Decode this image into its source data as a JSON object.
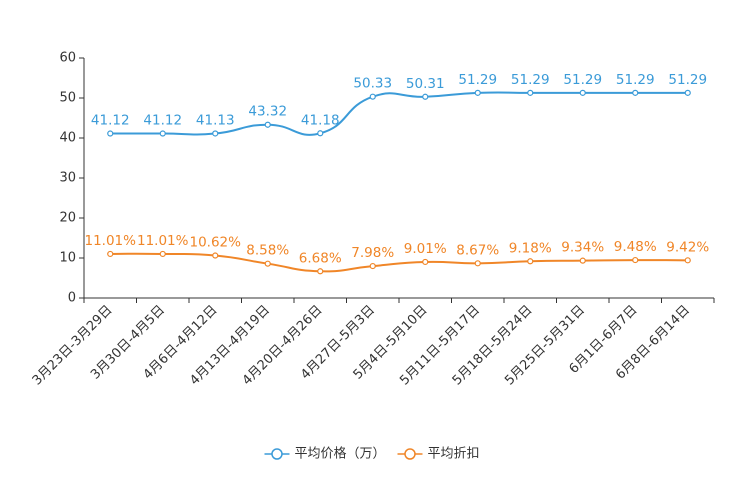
{
  "chart_data": {
    "type": "line",
    "ylim": [
      0,
      60
    ],
    "yticks": [
      0,
      10,
      20,
      30,
      40,
      50,
      60
    ],
    "categories": [
      "3月23日-3月29日",
      "3月30日-4月5日",
      "4月6日-4月12日",
      "4月13日-4月19日",
      "4月20日-4月26日",
      "4月27日-5月3日",
      "5月4日-5月10日",
      "5月11日-5月17日",
      "5月18日-5月24日",
      "5月25日-5月31日",
      "6月1日-6月7日",
      "6月8日-6月14日"
    ],
    "series": [
      {
        "name": "平均价格（万）",
        "color": "#3b9bd8",
        "values": [
          41.12,
          41.12,
          41.13,
          43.32,
          41.18,
          50.33,
          50.31,
          51.29,
          51.29,
          51.29,
          51.29,
          51.29
        ],
        "labels": [
          "41.12",
          "41.12",
          "41.13",
          "43.32",
          "41.18",
          "50.33",
          "50.31",
          "51.29",
          "51.29",
          "51.29",
          "51.29",
          "51.29"
        ]
      },
      {
        "name": "平均折扣",
        "color": "#f08628",
        "values": [
          11.01,
          11.01,
          10.62,
          8.58,
          6.68,
          7.98,
          9.01,
          8.67,
          9.18,
          9.34,
          9.48,
          9.42
        ],
        "labels": [
          "11.01%",
          "11.01%",
          "10.62%",
          "8.58%",
          "6.68%",
          "7.98%",
          "9.01%",
          "8.67%",
          "9.18%",
          "9.34%",
          "9.48%",
          "9.42%"
        ]
      }
    ]
  }
}
